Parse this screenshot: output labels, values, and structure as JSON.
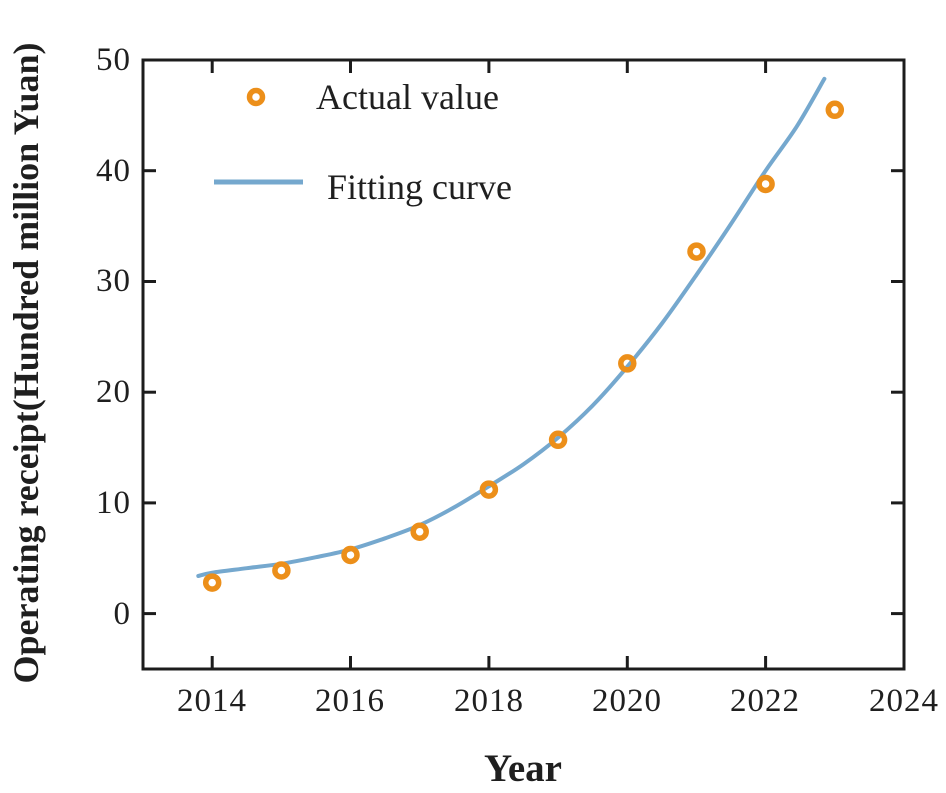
{
  "chart_data": {
    "type": "scatter",
    "title": "",
    "xlabel": "Year",
    "ylabel": "Operating receipt(Hundred million Yuan)",
    "xlim": [
      2013,
      2024
    ],
    "ylim": [
      -5,
      50
    ],
    "x_ticks": [
      2014,
      2016,
      2018,
      2020,
      2022,
      2024
    ],
    "y_ticks": [
      50,
      40,
      30,
      20,
      10,
      0
    ],
    "grid": false,
    "axis_color": "#1c1c1c",
    "legend_position": "upper-left-inside",
    "series": [
      {
        "name": "Actual value",
        "type": "scatter",
        "marker": "open-circle",
        "color": "#EC8F1A",
        "x": [
          2014,
          2015,
          2016,
          2017,
          2018,
          2019,
          2020,
          2021,
          2022,
          2023
        ],
        "y": [
          2.8,
          3.9,
          5.3,
          7.4,
          11.2,
          15.7,
          22.6,
          32.7,
          38.8,
          45.5
        ]
      },
      {
        "name": "Fitting curve",
        "type": "line",
        "color": "#75A8CE",
        "x": [
          2013.8,
          2014,
          2014.5,
          2015,
          2015.5,
          2016,
          2016.5,
          2017,
          2017.5,
          2018,
          2018.5,
          2019,
          2019.5,
          2020,
          2020.5,
          2021,
          2021.5,
          2022,
          2022.45,
          2022.85
        ],
        "y": [
          3.4,
          3.7,
          4.1,
          4.5,
          5.1,
          5.8,
          6.8,
          8.0,
          9.6,
          11.5,
          13.5,
          15.9,
          18.8,
          22.3,
          26.2,
          30.6,
          35.2,
          40.0,
          44.0,
          48.3
        ]
      }
    ]
  }
}
